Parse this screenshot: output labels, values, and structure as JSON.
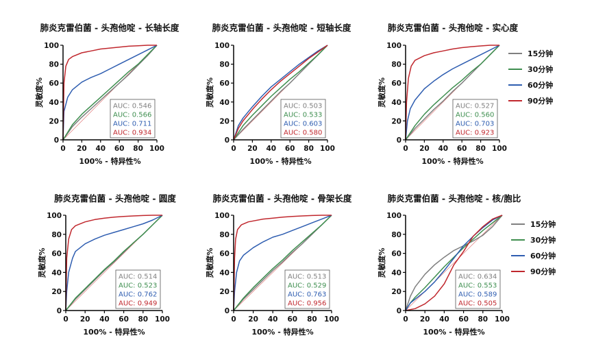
{
  "series_colors": [
    "#7f7f7f",
    "#3e8e4f",
    "#2e5db0",
    "#c0272d"
  ],
  "legend": [
    "15分钟",
    "30分钟",
    "60分钟",
    "90分钟"
  ],
  "chart_data": [
    {
      "type": "line",
      "title": "肺炎克雷伯菌 - 头孢他啶 - 长轴长度",
      "xlabel": "100% - 特异性%",
      "ylabel": "灵敏度%",
      "xlim": [
        0,
        100
      ],
      "ylim": [
        0,
        100
      ],
      "xticks": [
        "0",
        "20",
        "40",
        "60",
        "80",
        "100"
      ],
      "yticks": [
        "0",
        "20",
        "40",
        "60",
        "80",
        "100"
      ],
      "auc_labels": [
        "AUC: 0.546",
        "AUC: 0.566",
        "AUC: 0.711",
        "AUC: 0.934"
      ],
      "series": [
        {
          "name": "15分钟",
          "x": [
            0,
            10,
            20,
            30,
            40,
            50,
            60,
            70,
            80,
            90,
            100
          ],
          "y": [
            0,
            14,
            24,
            33,
            42,
            51,
            60,
            69,
            79,
            89,
            100
          ]
        },
        {
          "name": "30分钟",
          "x": [
            0,
            10,
            20,
            30,
            40,
            50,
            60,
            70,
            80,
            90,
            100
          ],
          "y": [
            0,
            16,
            27,
            36,
            45,
            54,
            63,
            72,
            80,
            90,
            100
          ]
        },
        {
          "name": "60分钟",
          "x": [
            0,
            1,
            5,
            10,
            20,
            30,
            40,
            50,
            60,
            70,
            80,
            90,
            100
          ],
          "y": [
            0,
            30,
            45,
            53,
            61,
            66,
            70,
            75,
            80,
            85,
            90,
            95,
            100
          ]
        },
        {
          "name": "90分钟",
          "x": [
            0,
            1,
            3,
            6,
            10,
            20,
            30,
            40,
            50,
            60,
            70,
            80,
            90,
            100
          ],
          "y": [
            0,
            60,
            78,
            85,
            88,
            92,
            94,
            96,
            97,
            98,
            99,
            99.5,
            100,
            100
          ]
        }
      ],
      "diagonal": true
    },
    {
      "type": "line",
      "title": "肺炎克雷伯菌 - 头孢他啶 - 短轴长度",
      "xlabel": "100% - 特异性%",
      "ylabel": "灵敏度%",
      "xlim": [
        0,
        100
      ],
      "ylim": [
        0,
        100
      ],
      "xticks": [
        "0",
        "20",
        "40",
        "60",
        "80",
        "100"
      ],
      "yticks": [
        "0",
        "20",
        "40",
        "60",
        "80",
        "100"
      ],
      "auc_labels": [
        "AUC: 0.503",
        "AUC: 0.533",
        "AUC: 0.603",
        "AUC: 0.580"
      ],
      "series": [
        {
          "name": "15分钟",
          "x": [
            0,
            10,
            20,
            30,
            40,
            50,
            60,
            70,
            80,
            90,
            100
          ],
          "y": [
            0,
            11,
            21,
            31,
            41,
            51,
            60,
            70,
            80,
            90,
            100
          ]
        },
        {
          "name": "30分钟",
          "x": [
            0,
            10,
            20,
            30,
            40,
            50,
            60,
            70,
            80,
            90,
            100
          ],
          "y": [
            0,
            15,
            26,
            36,
            46,
            55,
            64,
            72,
            81,
            90,
            100
          ]
        },
        {
          "name": "60分钟",
          "x": [
            0,
            5,
            10,
            20,
            30,
            40,
            50,
            60,
            70,
            80,
            90,
            100
          ],
          "y": [
            0,
            15,
            23,
            35,
            46,
            56,
            64,
            72,
            80,
            87,
            94,
            100
          ]
        },
        {
          "name": "90分钟",
          "x": [
            0,
            5,
            10,
            20,
            30,
            40,
            50,
            60,
            70,
            80,
            90,
            100
          ],
          "y": [
            0,
            12,
            20,
            32,
            43,
            53,
            62,
            70,
            78,
            86,
            93,
            100
          ]
        }
      ],
      "diagonal": true
    },
    {
      "type": "line",
      "title": "肺炎克雷伯菌 - 头孢他啶 - 实心度",
      "xlabel": "100% - 特异性%",
      "ylabel": "灵敏度%",
      "xlim": [
        0,
        100
      ],
      "ylim": [
        0,
        100
      ],
      "xticks": [
        "0",
        "20",
        "40",
        "60",
        "80",
        "100"
      ],
      "yticks": [
        "0",
        "20",
        "40",
        "60",
        "80",
        "100"
      ],
      "auc_labels": [
        "AUC: 0.527",
        "AUC: 0.560",
        "AUC: 0.703",
        "AUC: 0.923"
      ],
      "series": [
        {
          "name": "15分钟",
          "x": [
            0,
            10,
            20,
            30,
            40,
            50,
            60,
            70,
            80,
            90,
            100
          ],
          "y": [
            0,
            12,
            22,
            32,
            41,
            51,
            60,
            70,
            80,
            90,
            100
          ]
        },
        {
          "name": "30分钟",
          "x": [
            0,
            10,
            20,
            30,
            40,
            50,
            60,
            70,
            80,
            90,
            100
          ],
          "y": [
            0,
            15,
            27,
            37,
            46,
            55,
            63,
            72,
            80,
            90,
            100
          ]
        },
        {
          "name": "60分钟",
          "x": [
            0,
            2,
            5,
            10,
            20,
            30,
            40,
            50,
            60,
            70,
            80,
            90,
            100
          ],
          "y": [
            0,
            20,
            33,
            42,
            54,
            62,
            69,
            75,
            80,
            85,
            90,
            95,
            100
          ]
        },
        {
          "name": "90分钟",
          "x": [
            0,
            1,
            3,
            6,
            10,
            20,
            30,
            40,
            50,
            60,
            70,
            80,
            90,
            100
          ],
          "y": [
            0,
            40,
            65,
            78,
            84,
            89,
            92,
            94,
            96,
            97.5,
            98.5,
            99.3,
            100,
            100
          ]
        }
      ],
      "diagonal": true
    },
    {
      "type": "line",
      "title": "肺炎克雷伯菌 - 头孢他啶 - 圆度",
      "xlabel": "100% - 特异性%",
      "ylabel": "灵敏度%",
      "xlim": [
        0,
        100
      ],
      "ylim": [
        0,
        100
      ],
      "xticks": [
        "0",
        "20",
        "40",
        "60",
        "80",
        "100"
      ],
      "yticks": [
        "0",
        "20",
        "40",
        "60",
        "80",
        "100"
      ],
      "auc_labels": [
        "AUC: 0.514",
        "AUC: 0.523",
        "AUC: 0.762",
        "AUC: 0.949"
      ],
      "series": [
        {
          "name": "15分钟",
          "x": [
            0,
            10,
            20,
            30,
            40,
            50,
            60,
            70,
            80,
            90,
            100
          ],
          "y": [
            0,
            12,
            22,
            32,
            42,
            51,
            61,
            71,
            80,
            90,
            100
          ]
        },
        {
          "name": "30分钟",
          "x": [
            0,
            10,
            20,
            30,
            40,
            50,
            60,
            70,
            80,
            90,
            100
          ],
          "y": [
            0,
            13,
            23,
            33,
            43,
            52,
            62,
            71,
            80,
            90,
            100
          ]
        },
        {
          "name": "60分钟",
          "x": [
            0,
            1,
            3,
            7,
            10,
            20,
            30,
            40,
            50,
            60,
            70,
            80,
            90,
            100
          ],
          "y": [
            0,
            20,
            40,
            55,
            62,
            70,
            75,
            79,
            82,
            85,
            88,
            91,
            95,
            100
          ]
        },
        {
          "name": "90分钟",
          "x": [
            0,
            1,
            3,
            6,
            10,
            20,
            30,
            40,
            50,
            60,
            70,
            80,
            90,
            100
          ],
          "y": [
            0,
            55,
            75,
            85,
            89,
            93,
            95.5,
            97,
            98,
            98.8,
            99.3,
            99.7,
            100,
            100
          ]
        }
      ],
      "diagonal": true
    },
    {
      "type": "line",
      "title": "肺炎克雷伯菌 - 头孢他啶 - 骨架长度",
      "xlabel": "100% - 特异性%",
      "ylabel": "灵敏度%",
      "xlim": [
        0,
        100
      ],
      "ylim": [
        0,
        100
      ],
      "xticks": [
        "0",
        "20",
        "40",
        "60",
        "80",
        "100"
      ],
      "yticks": [
        "0",
        "20",
        "40",
        "60",
        "80",
        "100"
      ],
      "auc_labels": [
        "AUC: 0.513",
        "AUC: 0.529",
        "AUC: 0.763",
        "AUC: 0.956"
      ],
      "series": [
        {
          "name": "15分钟",
          "x": [
            0,
            10,
            20,
            30,
            40,
            50,
            60,
            70,
            80,
            90,
            100
          ],
          "y": [
            0,
            12,
            22,
            32,
            42,
            51,
            61,
            70,
            80,
            90,
            100
          ]
        },
        {
          "name": "30分钟",
          "x": [
            0,
            10,
            20,
            30,
            40,
            50,
            60,
            70,
            80,
            90,
            100
          ],
          "y": [
            0,
            13,
            24,
            34,
            44,
            53,
            63,
            72,
            81,
            90,
            100
          ]
        },
        {
          "name": "60分钟",
          "x": [
            0,
            1,
            3,
            6,
            10,
            20,
            30,
            40,
            50,
            60,
            70,
            80,
            90,
            100
          ],
          "y": [
            0,
            20,
            40,
            52,
            58,
            66,
            72,
            77,
            80,
            84,
            88,
            92,
            96,
            100
          ]
        },
        {
          "name": "90分钟",
          "x": [
            0,
            1,
            2,
            4,
            8,
            15,
            30,
            40,
            50,
            60,
            70,
            80,
            90,
            100
          ],
          "y": [
            0,
            55,
            75,
            85,
            90,
            93,
            96,
            97,
            98,
            98.8,
            99.3,
            99.7,
            100,
            100
          ]
        }
      ],
      "diagonal": true
    },
    {
      "type": "line",
      "title": "肺炎克雷伯菌 - 头孢他啶 - 核/胞比",
      "xlabel": "100% - 特异性%",
      "ylabel": "灵敏度%",
      "xlim": [
        0,
        100
      ],
      "ylim": [
        0,
        100
      ],
      "xticks": [
        "0",
        "20",
        "40",
        "60",
        "80",
        "100"
      ],
      "yticks": [
        "0",
        "20",
        "40",
        "60",
        "80",
        "100"
      ],
      "auc_labels": [
        "AUC: 0.634",
        "AUC: 0.553",
        "AUC: 0.589",
        "AUC: 0.505"
      ],
      "series": [
        {
          "name": "15分钟",
          "x": [
            0,
            5,
            10,
            20,
            30,
            40,
            50,
            60,
            70,
            80,
            90,
            100
          ],
          "y": [
            0,
            15,
            25,
            38,
            48,
            56,
            63,
            68,
            73,
            79,
            88,
            100
          ]
        },
        {
          "name": "30分钟",
          "x": [
            0,
            5,
            10,
            20,
            30,
            40,
            50,
            60,
            70,
            80,
            90,
            100
          ],
          "y": [
            0,
            8,
            14,
            24,
            35,
            46,
            56,
            66,
            75,
            84,
            92,
            100
          ]
        },
        {
          "name": "60分钟",
          "x": [
            0,
            5,
            10,
            20,
            30,
            40,
            50,
            60,
            70,
            80,
            90,
            100
          ],
          "y": [
            0,
            8,
            12,
            20,
            30,
            42,
            55,
            68,
            78,
            87,
            95,
            100
          ]
        },
        {
          "name": "90分钟",
          "x": [
            0,
            10,
            20,
            30,
            40,
            50,
            60,
            65,
            70,
            80,
            90,
            100
          ],
          "y": [
            0,
            2,
            7,
            15,
            28,
            48,
            62,
            70,
            78,
            88,
            96,
            100
          ]
        }
      ],
      "diagonal": true
    }
  ]
}
